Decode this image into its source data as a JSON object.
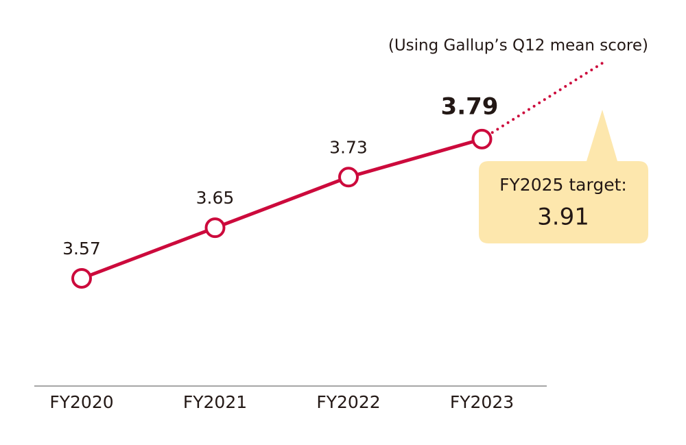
{
  "chart_data": {
    "type": "line",
    "note": "(Using Gallup’s Q12 mean score)",
    "categories": [
      "FY2020",
      "FY2021",
      "FY2022",
      "FY2023"
    ],
    "values": [
      3.57,
      3.65,
      3.73,
      3.79
    ],
    "color": "#cc0a3c",
    "ylim": [
      3.4,
      4.0
    ],
    "target": {
      "label": "FY2025 target:",
      "value": 3.91,
      "color": "#fde7ad"
    }
  }
}
